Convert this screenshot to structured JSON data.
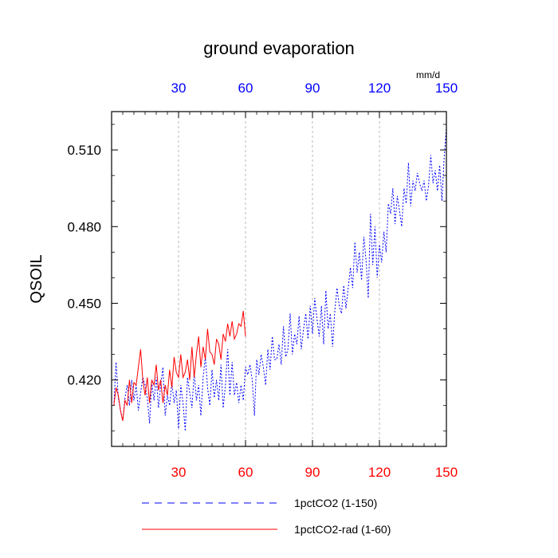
{
  "chart_data": {
    "type": "line",
    "title": "ground evaporation",
    "ylabel": "QSOIL",
    "xlabel": "",
    "top_axis_unit": "mm/d",
    "xlim": [
      0,
      150
    ],
    "ylim": [
      0.394,
      0.525
    ],
    "x_ticks": [
      30,
      60,
      90,
      120,
      150
    ],
    "x_tick_labels": [
      "30",
      "60",
      "90",
      "120",
      "150"
    ],
    "y_ticks": [
      0.42,
      0.45,
      0.48,
      0.51
    ],
    "y_tick_labels": [
      "0.420",
      "0.450",
      "0.480",
      "0.510"
    ],
    "grid": "vertical dashed at x ticks",
    "legend_position": "bottom",
    "colors": {
      "bottom_ticks": "#ff0000",
      "top_ticks": "#0000ff"
    },
    "series": [
      {
        "name": "1pctCO2 (1-150)",
        "color": "#0000ff",
        "style": "dashed",
        "x": [
          1,
          2,
          3,
          4,
          5,
          6,
          7,
          8,
          9,
          10,
          11,
          12,
          13,
          14,
          15,
          16,
          17,
          18,
          19,
          20,
          21,
          22,
          23,
          24,
          25,
          26,
          27,
          28,
          29,
          30,
          31,
          32,
          33,
          34,
          35,
          36,
          37,
          38,
          39,
          40,
          41,
          42,
          43,
          44,
          45,
          46,
          47,
          48,
          49,
          50,
          51,
          52,
          53,
          54,
          55,
          56,
          57,
          58,
          59,
          60,
          61,
          62,
          63,
          64,
          65,
          66,
          67,
          68,
          69,
          70,
          71,
          72,
          73,
          74,
          75,
          76,
          77,
          78,
          79,
          80,
          81,
          82,
          83,
          84,
          85,
          86,
          87,
          88,
          89,
          90,
          91,
          92,
          93,
          94,
          95,
          96,
          97,
          98,
          99,
          100,
          101,
          102,
          103,
          104,
          105,
          106,
          107,
          108,
          109,
          110,
          111,
          112,
          113,
          114,
          115,
          116,
          117,
          118,
          119,
          120,
          121,
          122,
          123,
          124,
          125,
          126,
          127,
          128,
          129,
          130,
          131,
          132,
          133,
          134,
          135,
          136,
          137,
          138,
          139,
          140,
          141,
          142,
          143,
          144,
          145,
          146,
          147,
          148,
          149,
          150
        ],
        "y": [
          0.41,
          0.427,
          0.413,
          0.408,
          0.404,
          0.413,
          0.418,
          0.41,
          0.42,
          0.412,
          0.418,
          0.408,
          0.415,
          0.421,
          0.418,
          0.413,
          0.403,
          0.419,
          0.412,
          0.421,
          0.409,
          0.418,
          0.425,
          0.406,
          0.414,
          0.41,
          0.419,
          0.411,
          0.416,
          0.401,
          0.418,
          0.411,
          0.4,
          0.421,
          0.415,
          0.409,
          0.423,
          0.412,
          0.418,
          0.406,
          0.421,
          0.429,
          0.417,
          0.41,
          0.424,
          0.413,
          0.42,
          0.412,
          0.426,
          0.409,
          0.418,
          0.432,
          0.414,
          0.427,
          0.414,
          0.419,
          0.411,
          0.418,
          0.412,
          0.425,
          0.422,
          0.426,
          0.42,
          0.406,
          0.428,
          0.422,
          0.43,
          0.425,
          0.418,
          0.432,
          0.424,
          0.437,
          0.428,
          0.428,
          0.434,
          0.426,
          0.441,
          0.429,
          0.432,
          0.446,
          0.43,
          0.438,
          0.434,
          0.445,
          0.432,
          0.44,
          0.446,
          0.436,
          0.449,
          0.438,
          0.452,
          0.444,
          0.437,
          0.449,
          0.434,
          0.455,
          0.44,
          0.446,
          0.433,
          0.447,
          0.456,
          0.449,
          0.446,
          0.457,
          0.448,
          0.456,
          0.464,
          0.456,
          0.474,
          0.462,
          0.47,
          0.459,
          0.476,
          0.467,
          0.452,
          0.485,
          0.465,
          0.48,
          0.46,
          0.473,
          0.466,
          0.478,
          0.47,
          0.489,
          0.485,
          0.495,
          0.481,
          0.492,
          0.486,
          0.48,
          0.495,
          0.489,
          0.505,
          0.488,
          0.498,
          0.494,
          0.501,
          0.497,
          0.494,
          0.498,
          0.49,
          0.496,
          0.508,
          0.497,
          0.502,
          0.494,
          0.504,
          0.49,
          0.507,
          0.519
        ]
      },
      {
        "name": "1pctCO2-rad (1-60)",
        "color": "#ff0000",
        "style": "solid",
        "x": [
          1,
          2,
          3,
          4,
          5,
          6,
          7,
          8,
          9,
          10,
          11,
          12,
          13,
          14,
          15,
          16,
          17,
          18,
          19,
          20,
          21,
          22,
          23,
          24,
          25,
          26,
          27,
          28,
          29,
          30,
          31,
          32,
          33,
          34,
          35,
          36,
          37,
          38,
          39,
          40,
          41,
          42,
          43,
          44,
          45,
          46,
          47,
          48,
          49,
          50,
          51,
          52,
          53,
          54,
          55,
          56,
          57,
          58,
          59,
          60
        ],
        "y": [
          0.41,
          0.417,
          0.414,
          0.408,
          0.404,
          0.412,
          0.41,
          0.42,
          0.411,
          0.419,
          0.418,
          0.425,
          0.432,
          0.42,
          0.414,
          0.421,
          0.411,
          0.42,
          0.418,
          0.426,
          0.416,
          0.42,
          0.411,
          0.418,
          0.414,
          0.424,
          0.417,
          0.429,
          0.423,
          0.421,
          0.43,
          0.421,
          0.423,
          0.428,
          0.42,
          0.433,
          0.421,
          0.43,
          0.437,
          0.425,
          0.433,
          0.428,
          0.44,
          0.431,
          0.43,
          0.426,
          0.436,
          0.434,
          0.428,
          0.438,
          0.435,
          0.442,
          0.437,
          0.443,
          0.436,
          0.438,
          0.442,
          0.441,
          0.447,
          0.437
        ]
      }
    ]
  }
}
